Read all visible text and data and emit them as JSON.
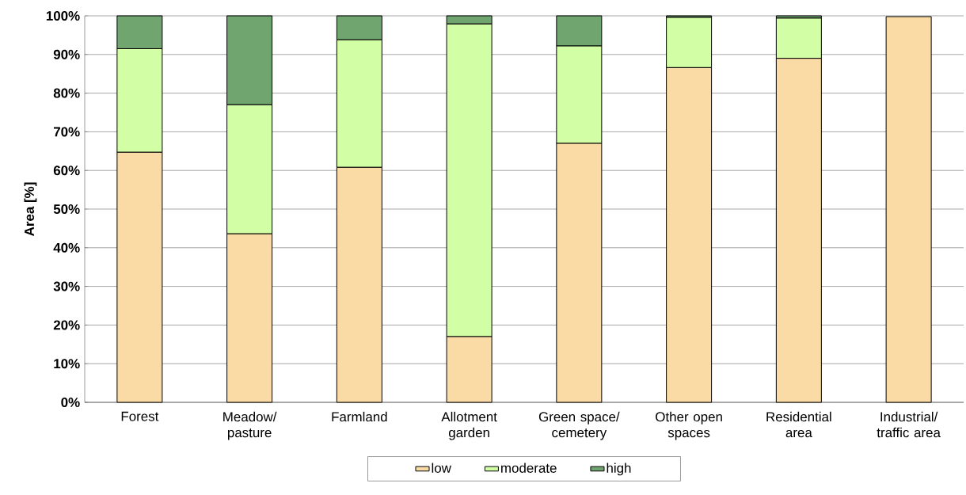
{
  "chart_data": {
    "type": "bar",
    "stacked": true,
    "ylabel": "Area [%]",
    "categories": [
      "Forest",
      "Meadow/ pasture",
      "Farmland",
      "Allotment garden",
      "Green space/ cemetery",
      "Other open spaces",
      "Residential area",
      "Industrial/ traffic area"
    ],
    "series": [
      {
        "name": "low",
        "color": "#fadba5",
        "values": [
          64.7,
          43.6,
          60.8,
          17.0,
          67.0,
          86.6,
          89.0,
          99.8
        ]
      },
      {
        "name": "moderate",
        "color": "#d2fea6",
        "values": [
          26.8,
          33.4,
          33.0,
          80.9,
          25.2,
          13.0,
          10.4,
          null
        ]
      },
      {
        "name": "high",
        "color": "#70a56f",
        "values": [
          8.5,
          23.0,
          6.2,
          2.1,
          7.8,
          0.4,
          0.6,
          0.0
        ]
      }
    ],
    "ylim": [
      0,
      100
    ],
    "yticks": [
      {
        "value": 0,
        "label": "0%"
      },
      {
        "value": 10,
        "label": "10%"
      },
      {
        "value": 20,
        "label": "20%"
      },
      {
        "value": 30,
        "label": "30%"
      },
      {
        "value": 40,
        "label": "40%"
      },
      {
        "value": 50,
        "label": "50%"
      },
      {
        "value": 60,
        "label": "60%"
      },
      {
        "value": 70,
        "label": "70%"
      },
      {
        "value": 80,
        "label": "80%"
      },
      {
        "value": 90,
        "label": "90%"
      },
      {
        "value": 100,
        "label": "100%"
      }
    ],
    "grid": "y",
    "legend": "bottom"
  }
}
